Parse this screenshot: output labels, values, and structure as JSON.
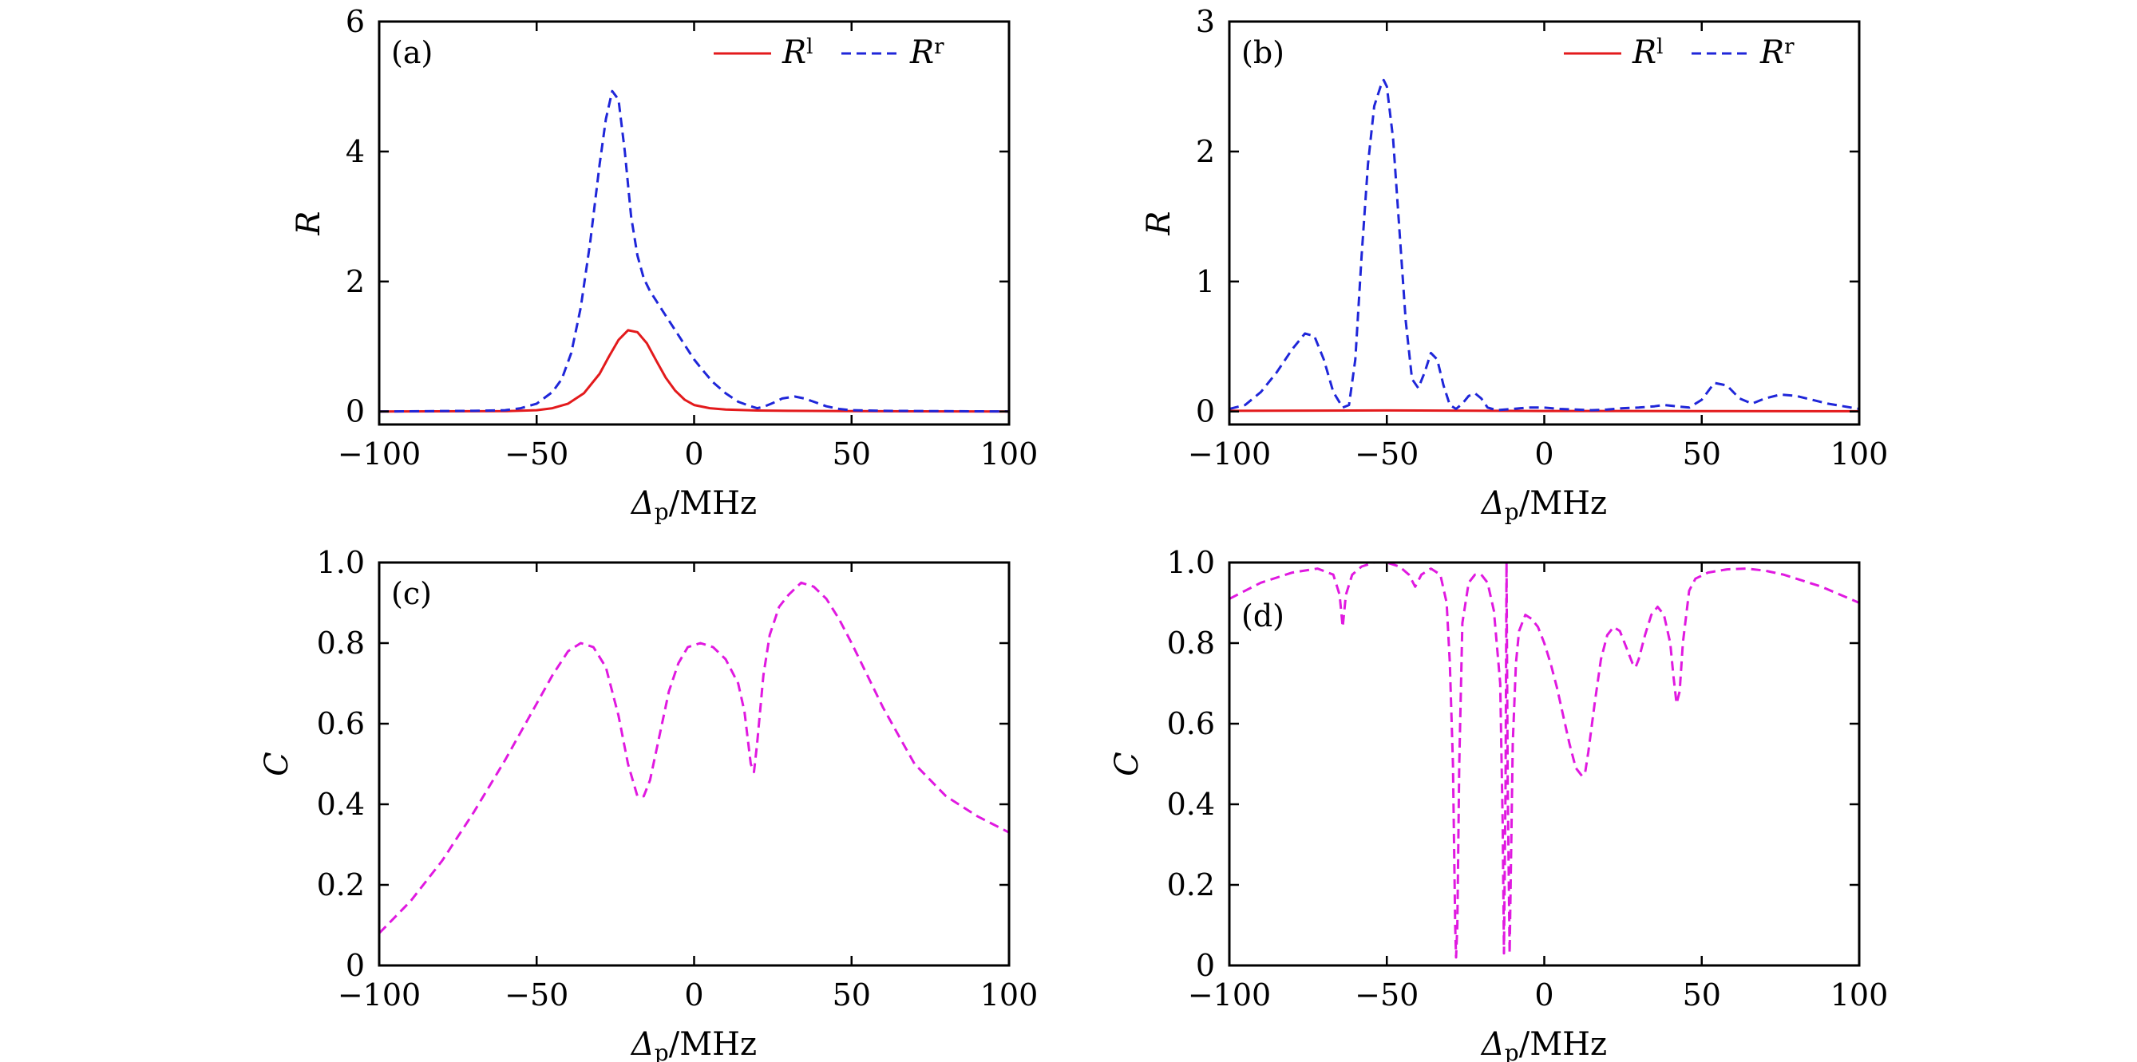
{
  "colors": {
    "red": "#e31a1c",
    "blue": "#1f26d9",
    "magenta": "#e019e0",
    "frame": "#000000",
    "background": "#ffffff"
  },
  "chart_data": [
    {
      "panel": "(a)",
      "type": "line",
      "xlabel_main": "Δ",
      "xlabel_sub": "p",
      "xlabel_tail": "/MHz",
      "ylabel": "R",
      "xlim": [
        -100,
        100
      ],
      "ylim": [
        -0.2,
        6
      ],
      "xticks": [
        -100,
        -50,
        0,
        50,
        100
      ],
      "yticks": [
        0,
        2,
        4,
        6
      ],
      "xtick_labels": [
        "−100",
        "−50",
        "0",
        "50",
        "100"
      ],
      "ytick_labels": [
        "0",
        "2",
        "4",
        "6"
      ],
      "grid": false,
      "legend": "top-right",
      "series": [
        {
          "name_main": "R",
          "name_sup": "l",
          "style": "solid",
          "color": "#e31a1c",
          "x": [
            -100,
            -60,
            -50,
            -45,
            -40,
            -35,
            -30,
            -27,
            -24,
            -21,
            -18,
            -15,
            -12,
            -9,
            -6,
            -3,
            0,
            5,
            10,
            20,
            30,
            50,
            100
          ],
          "y": [
            0,
            0.005,
            0.02,
            0.05,
            0.12,
            0.28,
            0.58,
            0.85,
            1.1,
            1.25,
            1.22,
            1.05,
            0.78,
            0.52,
            0.32,
            0.18,
            0.1,
            0.05,
            0.03,
            0.015,
            0.01,
            0.005,
            0
          ]
        },
        {
          "name_main": "R",
          "name_sup": "r",
          "style": "dashed",
          "color": "#1f26d9",
          "x": [
            -100,
            -70,
            -60,
            -55,
            -50,
            -45,
            -42,
            -39,
            -36,
            -33,
            -30,
            -28,
            -26,
            -24,
            -22,
            -20,
            -18,
            -16,
            -14,
            -12,
            -10,
            -8,
            -6,
            -4,
            -2,
            0,
            3,
            6,
            10,
            14,
            18,
            20,
            22,
            25,
            28,
            32,
            35,
            38,
            42,
            46,
            50,
            60,
            100
          ],
          "y": [
            0,
            0.01,
            0.02,
            0.05,
            0.12,
            0.3,
            0.5,
            0.9,
            1.6,
            2.6,
            3.8,
            4.5,
            4.93,
            4.8,
            4.0,
            3.0,
            2.4,
            2.05,
            1.85,
            1.7,
            1.55,
            1.4,
            1.25,
            1.1,
            0.95,
            0.8,
            0.62,
            0.45,
            0.28,
            0.15,
            0.08,
            0.05,
            0.07,
            0.13,
            0.2,
            0.23,
            0.2,
            0.15,
            0.08,
            0.04,
            0.02,
            0.01,
            0
          ]
        }
      ]
    },
    {
      "panel": "(b)",
      "type": "line",
      "xlabel_main": "Δ",
      "xlabel_sub": "p",
      "xlabel_tail": "/MHz",
      "ylabel": "R",
      "xlim": [
        -100,
        100
      ],
      "ylim": [
        -0.1,
        3
      ],
      "xticks": [
        -100,
        -50,
        0,
        50,
        100
      ],
      "yticks": [
        0,
        1,
        2,
        3
      ],
      "xtick_labels": [
        "−100",
        "−50",
        "0",
        "50",
        "100"
      ],
      "ytick_labels": [
        "0",
        "1",
        "2",
        "3"
      ],
      "grid": false,
      "legend": "top-right",
      "series": [
        {
          "name_main": "R",
          "name_sup": "l",
          "style": "solid",
          "color": "#e31a1c",
          "x": [
            -100,
            -50,
            0,
            50,
            100
          ],
          "y": [
            0.005,
            0.008,
            0.004,
            0.003,
            0.002
          ]
        },
        {
          "name_main": "R",
          "name_sup": "r",
          "style": "dashed",
          "color": "#1f26d9",
          "x": [
            -100,
            -95,
            -90,
            -85,
            -80,
            -76,
            -73,
            -70,
            -67,
            -64,
            -62,
            -60,
            -58,
            -56,
            -54,
            -52,
            -51,
            -50,
            -48,
            -46,
            -44,
            -42,
            -40,
            -38,
            -36,
            -34,
            -32,
            -30,
            -28,
            -26,
            -24,
            -22,
            -20,
            -18,
            -15,
            -10,
            -5,
            0,
            5,
            10,
            15,
            20,
            25,
            30,
            35,
            38,
            42,
            46,
            50,
            54,
            58,
            62,
            66,
            70,
            75,
            80,
            85,
            90,
            95,
            100
          ],
          "y": [
            0.02,
            0.05,
            0.15,
            0.3,
            0.48,
            0.6,
            0.58,
            0.4,
            0.15,
            0.03,
            0.05,
            0.4,
            1.2,
            1.9,
            2.35,
            2.5,
            2.55,
            2.5,
            2.1,
            1.4,
            0.7,
            0.25,
            0.18,
            0.3,
            0.45,
            0.4,
            0.2,
            0.05,
            0.02,
            0.06,
            0.12,
            0.14,
            0.1,
            0.03,
            0.01,
            0.02,
            0.03,
            0.03,
            0.02,
            0.015,
            0.01,
            0.015,
            0.025,
            0.03,
            0.04,
            0.05,
            0.04,
            0.03,
            0.09,
            0.22,
            0.2,
            0.1,
            0.06,
            0.1,
            0.13,
            0.12,
            0.09,
            0.06,
            0.04,
            0.02
          ]
        }
      ]
    },
    {
      "panel": "(c)",
      "type": "line",
      "xlabel_main": "Δ",
      "xlabel_sub": "p",
      "xlabel_tail": "/MHz",
      "ylabel": "C",
      "xlim": [
        -100,
        100
      ],
      "ylim": [
        0,
        1
      ],
      "xticks": [
        -100,
        -50,
        0,
        50,
        100
      ],
      "yticks": [
        0,
        0.2,
        0.4,
        0.6,
        0.8,
        1.0
      ],
      "xtick_labels": [
        "−100",
        "−50",
        "0",
        "50",
        "100"
      ],
      "ytick_labels": [
        "0",
        "0.2",
        "0.4",
        "0.6",
        "0.8",
        "1.0"
      ],
      "grid": false,
      "series": [
        {
          "style": "dashed",
          "color": "#e019e0",
          "x": [
            -100,
            -90,
            -80,
            -70,
            -60,
            -50,
            -45,
            -40,
            -36,
            -32,
            -28,
            -24,
            -21,
            -18,
            -16,
            -14,
            -11,
            -8,
            -5,
            -2,
            2,
            6,
            10,
            14,
            16,
            18,
            19,
            20,
            22,
            24,
            27,
            30,
            34,
            38,
            42,
            46,
            50,
            55,
            60,
            65,
            70,
            75,
            80,
            90,
            100
          ],
          "y": [
            0.08,
            0.16,
            0.26,
            0.38,
            0.51,
            0.65,
            0.72,
            0.78,
            0.8,
            0.79,
            0.74,
            0.62,
            0.5,
            0.42,
            0.42,
            0.46,
            0.57,
            0.68,
            0.75,
            0.79,
            0.8,
            0.79,
            0.76,
            0.7,
            0.63,
            0.5,
            0.48,
            0.55,
            0.72,
            0.82,
            0.89,
            0.92,
            0.95,
            0.94,
            0.91,
            0.86,
            0.8,
            0.72,
            0.64,
            0.57,
            0.5,
            0.46,
            0.42,
            0.37,
            0.33
          ]
        }
      ]
    },
    {
      "panel": "(d)",
      "type": "line",
      "xlabel_main": "Δ",
      "xlabel_sub": "p",
      "xlabel_tail": "/MHz",
      "ylabel": "C",
      "xlim": [
        -100,
        100
      ],
      "ylim": [
        0,
        1
      ],
      "xticks": [
        -100,
        -50,
        0,
        50,
        100
      ],
      "yticks": [
        0,
        0.2,
        0.4,
        0.6,
        0.8,
        1.0
      ],
      "xtick_labels": [
        "−100",
        "−50",
        "0",
        "50",
        "100"
      ],
      "ytick_labels": [
        "0",
        "0.2",
        "0.4",
        "0.6",
        "0.8",
        "1.0"
      ],
      "grid": false,
      "series": [
        {
          "style": "dashed",
          "color": "#e019e0",
          "x": [
            -100,
            -90,
            -80,
            -72,
            -67,
            -65,
            -64,
            -63,
            -61,
            -58,
            -54,
            -50,
            -46,
            -43,
            -41,
            -39,
            -36,
            -33,
            -31,
            -30,
            -29,
            -28.3,
            -28,
            -27.6,
            -27,
            -26,
            -24,
            -22,
            -20,
            -18,
            -16,
            -14,
            -13.2,
            -12.8,
            -12.3,
            -12,
            -11.6,
            -11,
            -10.4,
            -10,
            -9,
            -8,
            -6,
            -4,
            -2,
            0,
            2,
            4,
            6,
            8,
            10,
            12,
            13,
            14,
            16,
            18,
            20,
            22,
            24,
            26,
            28,
            29,
            30,
            32,
            34,
            36,
            38,
            40,
            41,
            42,
            43,
            44,
            46,
            48,
            52,
            58,
            64,
            70,
            76,
            82,
            88,
            94,
            100
          ],
          "y": [
            0.91,
            0.95,
            0.975,
            0.985,
            0.97,
            0.92,
            0.84,
            0.92,
            0.97,
            0.99,
            1.0,
            1.0,
            0.99,
            0.97,
            0.94,
            0.97,
            0.985,
            0.97,
            0.9,
            0.75,
            0.5,
            0.1,
            0.02,
            0.1,
            0.5,
            0.85,
            0.95,
            0.97,
            0.97,
            0.95,
            0.88,
            0.7,
            0.35,
            0.03,
            0.45,
            1.0,
            0.45,
            0.03,
            0.35,
            0.55,
            0.75,
            0.83,
            0.87,
            0.86,
            0.84,
            0.8,
            0.75,
            0.69,
            0.62,
            0.55,
            0.49,
            0.47,
            0.48,
            0.53,
            0.65,
            0.76,
            0.82,
            0.84,
            0.83,
            0.79,
            0.75,
            0.74,
            0.76,
            0.82,
            0.87,
            0.89,
            0.87,
            0.8,
            0.72,
            0.65,
            0.68,
            0.8,
            0.93,
            0.96,
            0.975,
            0.983,
            0.985,
            0.98,
            0.97,
            0.955,
            0.94,
            0.92,
            0.9
          ]
        }
      ]
    }
  ]
}
